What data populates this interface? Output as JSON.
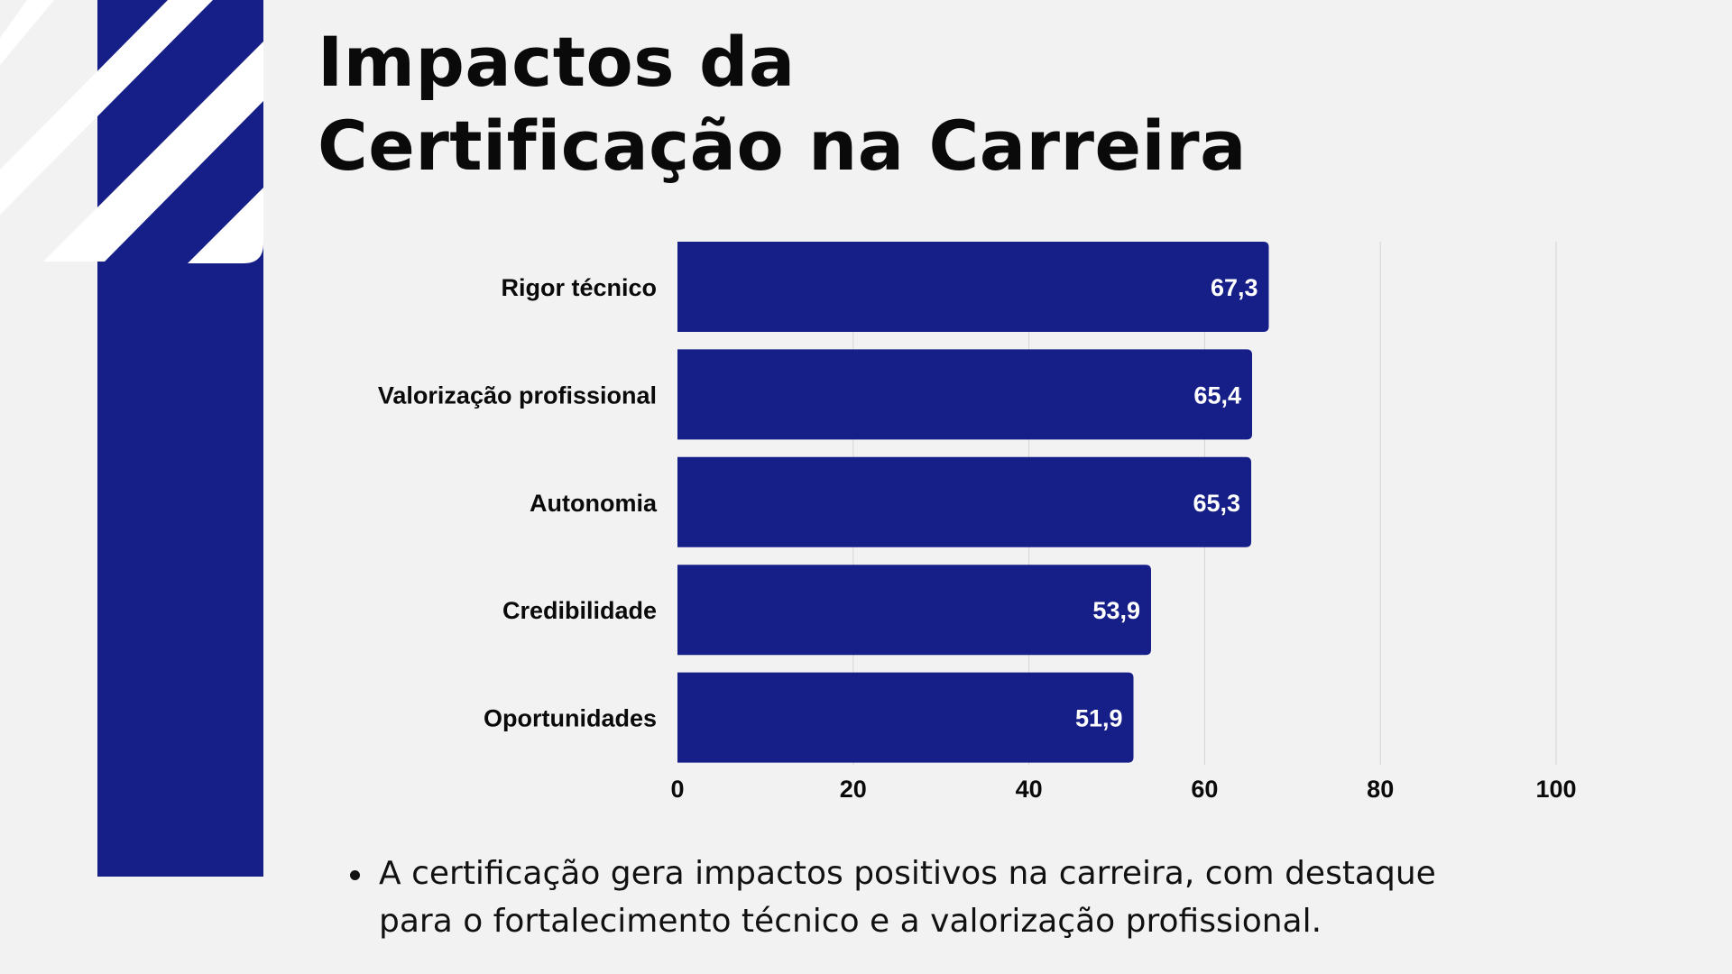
{
  "colors": {
    "background": "#f2f2f2",
    "accent": "#161e87",
    "stripe": "#ffffff",
    "text": "#0a0a0a",
    "bar_label": "#ffffff",
    "grid": "#d4d4d4"
  },
  "header": {
    "title_line1": "Impactos da",
    "title_line2": "Certificação na Carreira"
  },
  "chart_data": {
    "type": "bar",
    "orientation": "horizontal",
    "title": "",
    "xlabel": "",
    "ylabel": "",
    "categories": [
      "Rigor técnico",
      "Valorização profissional",
      "Autonomia",
      "Credibilidade",
      "Oportunidades"
    ],
    "values": [
      67.3,
      65.4,
      65.3,
      53.9,
      51.9
    ],
    "value_labels": [
      "67,3",
      "65,4",
      "65,3",
      "53,9",
      "51,9"
    ],
    "xlim": [
      0,
      100
    ],
    "xticks": [
      0,
      20,
      40,
      60,
      80,
      100
    ],
    "grid": true,
    "legend": "none"
  },
  "notes": {
    "items": [
      {
        "line1": "A certificação gera impactos positivos na carreira, com destaque",
        "line2": "para o fortalecimento técnico e a valorização profissional."
      }
    ]
  }
}
